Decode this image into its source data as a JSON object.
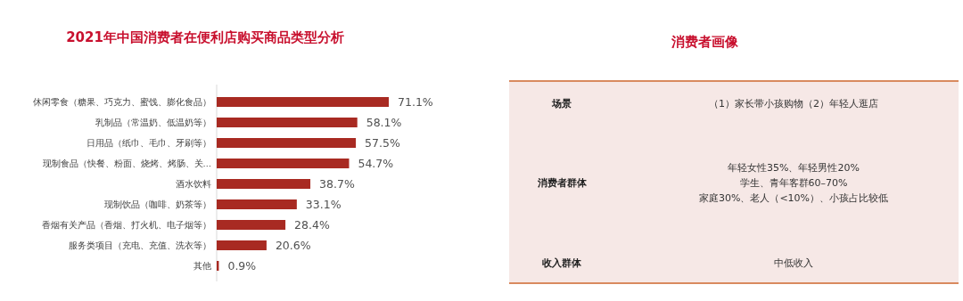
{
  "chart_data": [
    {
      "type": "bar",
      "orientation": "horizontal",
      "title": "2021年中国消费者在便利店购买商品类型分析",
      "categories": [
        "休闲零食（糖果、巧克力、蜜饯、膨化食品）",
        "乳制品（常温奶、低温奶等）",
        "日用品（纸巾、毛巾、牙刷等）",
        "现制食品（快餐、粉面、烧烤、烤肠、关…",
        "酒水饮料",
        "现制饮品（咖啡、奶茶等）",
        "香烟有关产品（香烟、打火机、电子烟等）",
        "服务类项目（充电、充值、洗衣等）",
        "其他"
      ],
      "values": [
        71.1,
        58.1,
        57.5,
        54.7,
        38.7,
        33.1,
        28.4,
        20.6,
        0.9
      ],
      "value_labels": [
        "71.1%",
        "58.1%",
        "57.5%",
        "54.7%",
        "38.7%",
        "33.1%",
        "28.4%",
        "20.6%",
        "0.9%"
      ],
      "color": "#a82a22"
    },
    {
      "type": "other",
      "title": "消费者画像",
      "y_categories": [
        "场景",
        "消费者群体",
        "收入群体"
      ],
      "annotations": [
        "（1）家长带小孩购物（2）年轻人逛店",
        "年轻女性35%、年轻男性20%\n学生、青年客群60–70%\n家庭30%、老人（<10%）、小孩占比较低",
        "中低收入"
      ],
      "color": "#f6e8e6"
    }
  ]
}
